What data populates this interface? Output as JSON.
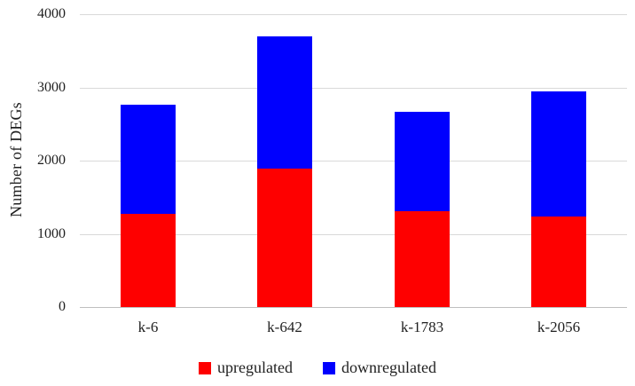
{
  "chart_data": {
    "type": "bar",
    "stacked": true,
    "title": "",
    "xlabel": "",
    "ylabel": "Number of DEGs",
    "categories": [
      "k-6",
      "k-642",
      "k-1783",
      "k-2056"
    ],
    "series": [
      {
        "name": "upregulated",
        "color": "#fe0000",
        "values": [
          1270,
          1890,
          1310,
          1240
        ]
      },
      {
        "name": "downregulated",
        "color": "#0000fe",
        "values": [
          1490,
          1810,
          1360,
          1710
        ]
      }
    ],
    "totals": [
      2760,
      3700,
      2670,
      2950
    ],
    "ylim": [
      0,
      4000
    ],
    "yticks": [
      0,
      1000,
      2000,
      3000,
      4000
    ],
    "grid": true,
    "gridline_color": "#d9d9d9",
    "axis_line_color": "#bfbfbf",
    "legend_position": "bottom",
    "background_color": "#ffffff",
    "text_color": "#1f1f1f"
  }
}
